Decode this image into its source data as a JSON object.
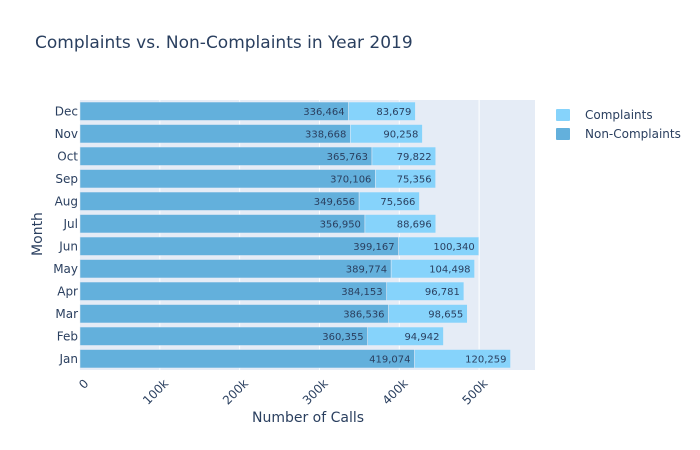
{
  "chart_data": {
    "type": "bar",
    "orientation": "horizontal",
    "stacked": true,
    "title": "Complaints vs. Non-Complaints in Year 2019",
    "xlabel": "Number of Calls",
    "ylabel": "Month",
    "xlim": [
      0,
      570000
    ],
    "xticks": [
      0,
      100000,
      200000,
      300000,
      400000,
      500000
    ],
    "xtick_labels": [
      "0",
      "100k",
      "200k",
      "300k",
      "400k",
      "500k"
    ],
    "categories": [
      "Jan",
      "Feb",
      "Mar",
      "Apr",
      "May",
      "Jun",
      "Jul",
      "Aug",
      "Sep",
      "Oct",
      "Nov",
      "Dec"
    ],
    "series": [
      {
        "name": "Non-Complaints",
        "color": "#63b0dc",
        "values": [
          419074,
          360355,
          386536,
          384153,
          389774,
          399167,
          356950,
          349656,
          370106,
          365763,
          338668,
          336464
        ],
        "labels": [
          "419,074",
          "360,355",
          "386,536",
          "384,153",
          "389,774",
          "399,167",
          "356,950",
          "349,656",
          "370,106",
          "365,763",
          "338,668",
          "336,464"
        ]
      },
      {
        "name": "Complaints",
        "color": "#86d3fb",
        "values": [
          120259,
          94942,
          98655,
          96781,
          104498,
          100340,
          88696,
          75566,
          75356,
          79822,
          90258,
          83679
        ],
        "labels": [
          "120,259",
          "94,942",
          "98,655",
          "96,781",
          "104,498",
          "100,340",
          "88,696",
          "75,566",
          "75,356",
          "79,822",
          "90,258",
          "83,679"
        ]
      }
    ],
    "legend": [
      "Complaints",
      "Non-Complaints"
    ],
    "legend_position": "right",
    "plot_background": "#e5ecf6",
    "grid": true
  }
}
